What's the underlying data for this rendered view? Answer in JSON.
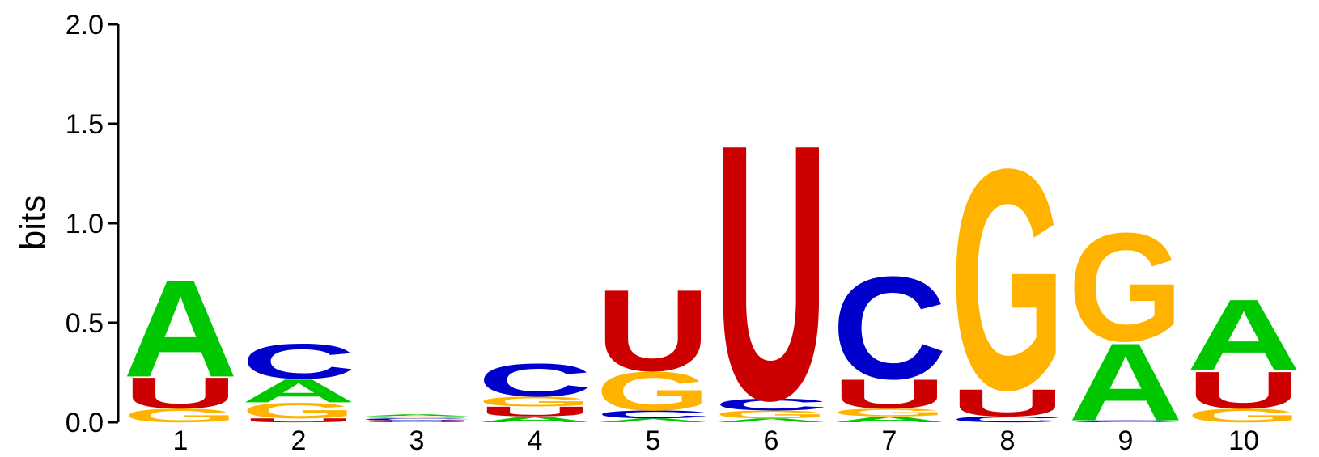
{
  "chart_data": {
    "type": "sequence_logo",
    "ylabel": "bits",
    "ylim": [
      0,
      2.0
    ],
    "yticks": [
      "0.0",
      "0.5",
      "1.0",
      "1.5",
      "2.0"
    ],
    "positions": [
      "1",
      "2",
      "3",
      "4",
      "5",
      "6",
      "7",
      "8",
      "9",
      "10"
    ],
    "colors": {
      "A": "#00c800",
      "C": "#0000cc",
      "G": "#ffb300",
      "U": "#cc0000"
    },
    "stacks": [
      [
        {
          "base": "G",
          "height": 0.07
        },
        {
          "base": "U",
          "height": 0.16
        },
        {
          "base": "A",
          "height": 0.5
        }
      ],
      [
        {
          "base": "U",
          "height": 0.02
        },
        {
          "base": "G",
          "height": 0.08
        },
        {
          "base": "A",
          "height": 0.12
        },
        {
          "base": "C",
          "height": 0.18
        }
      ],
      [
        {
          "base": "U",
          "height": 0.01
        },
        {
          "base": "C",
          "height": 0.01
        },
        {
          "base": "G",
          "height": 0.01
        },
        {
          "base": "A",
          "height": 0.01
        }
      ],
      [
        {
          "base": "A",
          "height": 0.03
        },
        {
          "base": "U",
          "height": 0.05
        },
        {
          "base": "G",
          "height": 0.05
        },
        {
          "base": "C",
          "height": 0.17
        }
      ],
      [
        {
          "base": "A",
          "height": 0.02
        },
        {
          "base": "C",
          "height": 0.04
        },
        {
          "base": "G",
          "height": 0.2
        },
        {
          "base": "U",
          "height": 0.42
        }
      ],
      [
        {
          "base": "A",
          "height": 0.02
        },
        {
          "base": "G",
          "height": 0.04
        },
        {
          "base": "C",
          "height": 0.06
        },
        {
          "base": "U",
          "height": 1.32
        }
      ],
      [
        {
          "base": "A",
          "height": 0.03
        },
        {
          "base": "G",
          "height": 0.04
        },
        {
          "base": "U",
          "height": 0.15
        },
        {
          "base": "C",
          "height": 0.53
        }
      ],
      [
        {
          "base": "C",
          "height": 0.03
        },
        {
          "base": "U",
          "height": 0.14
        },
        {
          "base": "G",
          "height": 1.14
        }
      ],
      [
        {
          "base": "C",
          "height": 0.01
        },
        {
          "base": "A",
          "height": 0.4
        },
        {
          "base": "G",
          "height": 0.56
        }
      ],
      [
        {
          "base": "G",
          "height": 0.07
        },
        {
          "base": "U",
          "height": 0.19
        },
        {
          "base": "A",
          "height": 0.37
        }
      ]
    ]
  }
}
